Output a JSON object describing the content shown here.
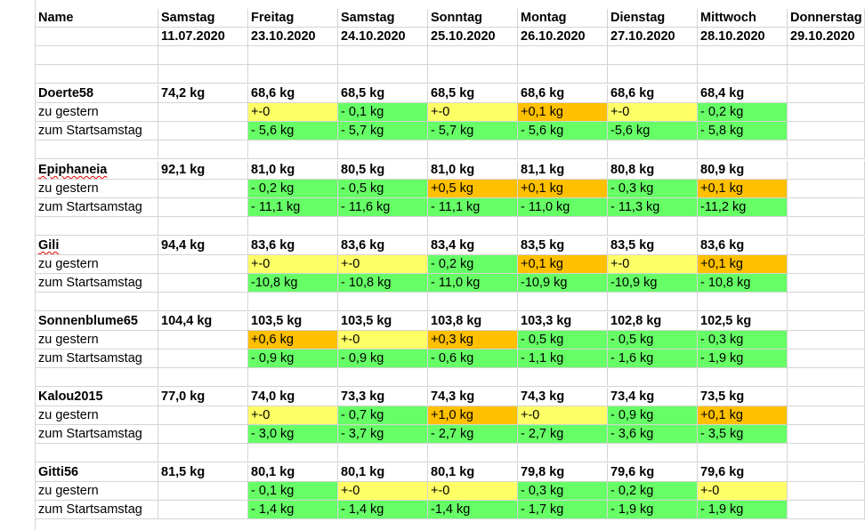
{
  "header": {
    "name_label": "Name",
    "days": [
      {
        "weekday": "Samstag",
        "date": "11.07.2020"
      },
      {
        "weekday": "Freitag",
        "date": "23.10.2020"
      },
      {
        "weekday": "Samstag",
        "date": "24.10.2020"
      },
      {
        "weekday": "Sonntag",
        "date": "25.10.2020"
      },
      {
        "weekday": "Montag",
        "date": "26.10.2020"
      },
      {
        "weekday": "Dienstag",
        "date": "27.10.2020"
      },
      {
        "weekday": "Mittwoch",
        "date": "28.10.2020"
      },
      {
        "weekday": "Donnerstag",
        "date": "29.10.2020"
      }
    ]
  },
  "colors": {
    "yellow": "#ffff66",
    "green": "#66ff66",
    "orange": "#ffc000"
  },
  "label_diff": "zu gestern",
  "label_start": "zum Startsamstag",
  "people": [
    {
      "name": "Doerte58",
      "start": "74,2 kg",
      "weights": [
        "68,6 kg",
        "68,5 kg",
        "68,5 kg",
        "68,6 kg",
        "68,6 kg",
        "68,4 kg"
      ],
      "diffs": [
        [
          "+-0",
          "y"
        ],
        [
          "- 0,1 kg",
          "g"
        ],
        [
          "+-0",
          "y"
        ],
        [
          "+0,1 kg",
          "o"
        ],
        [
          "+-0",
          "y"
        ],
        [
          "- 0,2 kg",
          "g"
        ]
      ],
      "totals": [
        "- 5,6 kg",
        "- 5,7 kg",
        "- 5,7 kg",
        "- 5,6 kg",
        "-5,6 kg",
        "- 5,8 kg"
      ]
    },
    {
      "name": "Epiphaneia",
      "start": "92,1 kg",
      "weights": [
        "81,0 kg",
        "80,5 kg",
        "81,0 kg",
        "81,1 kg",
        "80,8 kg",
        "80,9 kg"
      ],
      "diffs": [
        [
          "-  0,2 kg",
          "g"
        ],
        [
          "-   0,5 kg",
          "g"
        ],
        [
          "+0,5 kg",
          "o"
        ],
        [
          "+0,1 kg",
          "o"
        ],
        [
          "-   0,3 kg",
          "g"
        ],
        [
          "+0,1 kg",
          "o"
        ]
      ],
      "totals": [
        "- 11,1 kg",
        "- 11,6 kg",
        "- 11,1 kg",
        "- 11,0 kg",
        "- 11,3 kg",
        "-11,2 kg"
      ]
    },
    {
      "name": "Gili",
      "start": "94,4 kg",
      "weights": [
        "83,6 kg",
        "83,6 kg",
        "83,4 kg",
        "83,5 kg",
        "83,5 kg",
        "83,6 kg"
      ],
      "diffs": [
        [
          "+-0",
          "y"
        ],
        [
          "+-0",
          "y"
        ],
        [
          "-  0,2 kg",
          "g"
        ],
        [
          "+0,1 kg",
          "o"
        ],
        [
          "+-0",
          "y"
        ],
        [
          "+0,1 kg",
          "o"
        ]
      ],
      "totals": [
        "-10,8 kg",
        "- 10,8 kg",
        "- 11,0 kg",
        "-10,9 kg",
        "-10,9 kg",
        "- 10,8 kg"
      ]
    },
    {
      "name": "Sonnenblume65",
      "start": "104,4 kg",
      "weights": [
        "103,5 kg",
        "103,5 kg",
        "103,8 kg",
        "103,3 kg",
        "102,8 kg",
        "102,5 kg"
      ],
      "diffs": [
        [
          "+0,6 kg",
          "o"
        ],
        [
          "+-0",
          "y"
        ],
        [
          "+0,3 kg",
          "o"
        ],
        [
          "- 0,5 kg",
          "g"
        ],
        [
          "- 0,5 kg",
          "g"
        ],
        [
          "- 0,3 kg",
          "g"
        ]
      ],
      "totals": [
        "- 0,9 kg",
        "- 0,9 kg",
        "- 0,6 kg",
        "- 1,1 kg",
        "- 1,6 kg",
        "- 1,9 kg"
      ]
    },
    {
      "name": "Kalou2015",
      "start": "77,0 kg",
      "weights": [
        "74,0 kg",
        "73,3 kg",
        "74,3 kg",
        "74,3 kg",
        "73,4 kg",
        "73,5 kg"
      ],
      "diffs": [
        [
          "+-0",
          "y"
        ],
        [
          "- 0,7 kg",
          "g"
        ],
        [
          "+1,0 kg",
          "o"
        ],
        [
          "+-0",
          "y"
        ],
        [
          "- 0,9 kg",
          "g"
        ],
        [
          "+0,1 kg",
          "o"
        ]
      ],
      "totals": [
        "- 3,0 kg",
        "- 3,7 kg",
        "- 2,7 kg",
        "- 2,7 kg",
        "- 3,6 kg",
        "- 3,5 kg"
      ]
    },
    {
      "name": "Gitti56",
      "start": "81,5 kg",
      "weights": [
        "80,1 kg",
        "80,1 kg",
        "80,1 kg",
        "79,8 kg",
        "79,6 kg",
        "79,6 kg"
      ],
      "diffs": [
        [
          "- 0,1 kg",
          "g"
        ],
        [
          "+-0",
          "y"
        ],
        [
          "+-0",
          "y"
        ],
        [
          "- 0,3 kg",
          "g"
        ],
        [
          "- 0,2 kg",
          "g"
        ],
        [
          "+-0",
          "y"
        ]
      ],
      "totals": [
        "- 1,4 kg",
        "- 1,4 kg",
        "-1,4 kg",
        "- 1,7 kg",
        "- 1,9 kg",
        "- 1,9 kg"
      ]
    }
  ]
}
